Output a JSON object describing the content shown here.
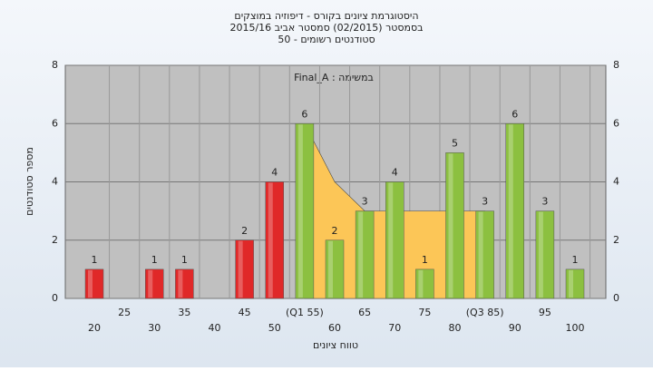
{
  "chart_data": {
    "type": "bar",
    "title": "היסטוגרמת ציונים בקורס - דיפוזיה במוצקים",
    "subtitle": "בסמסטר  (02/2015)  סמסטר אביב 2015/16",
    "subtitle2": "סטודנטים רשומים - 50",
    "annotation": "במשימה : Final_A",
    "ylabel": "מספר סטודנטים",
    "xlabel": "טווח ציונים",
    "categories": [
      "20",
      "25",
      "30",
      "35",
      "40",
      "45",
      "50",
      "(Q1 55)",
      "60",
      "65",
      "70",
      "75",
      "80",
      "(Q3 85)",
      "90",
      "95",
      "100"
    ],
    "values": [
      1,
      0,
      1,
      1,
      0,
      2,
      4,
      6,
      2,
      3,
      4,
      1,
      5,
      3,
      6,
      3,
      1
    ],
    "value_labels": [
      "1",
      null,
      "1",
      "1",
      null,
      "2",
      "4",
      "6",
      "2",
      "3",
      "4",
      "1",
      "5",
      "3",
      "6",
      "3",
      "1"
    ],
    "colors": [
      "#e02828",
      "#e02828",
      "#e02828",
      "#e02828",
      "#e02828",
      "#e02828",
      "#e02828",
      "#8cc040",
      "#8cc040",
      "#8cc040",
      "#8cc040",
      "#8cc040",
      "#8cc040",
      "#8cc040",
      "#8cc040",
      "#8cc040",
      "#8cc040"
    ],
    "area": {
      "color": "#fcc657",
      "x_index": [
        7,
        8,
        9,
        13
      ],
      "values": [
        6,
        4,
        3,
        3
      ]
    },
    "ylim": [
      0,
      8
    ],
    "yticks": [
      0,
      2,
      4,
      6,
      8
    ],
    "grid": true
  }
}
